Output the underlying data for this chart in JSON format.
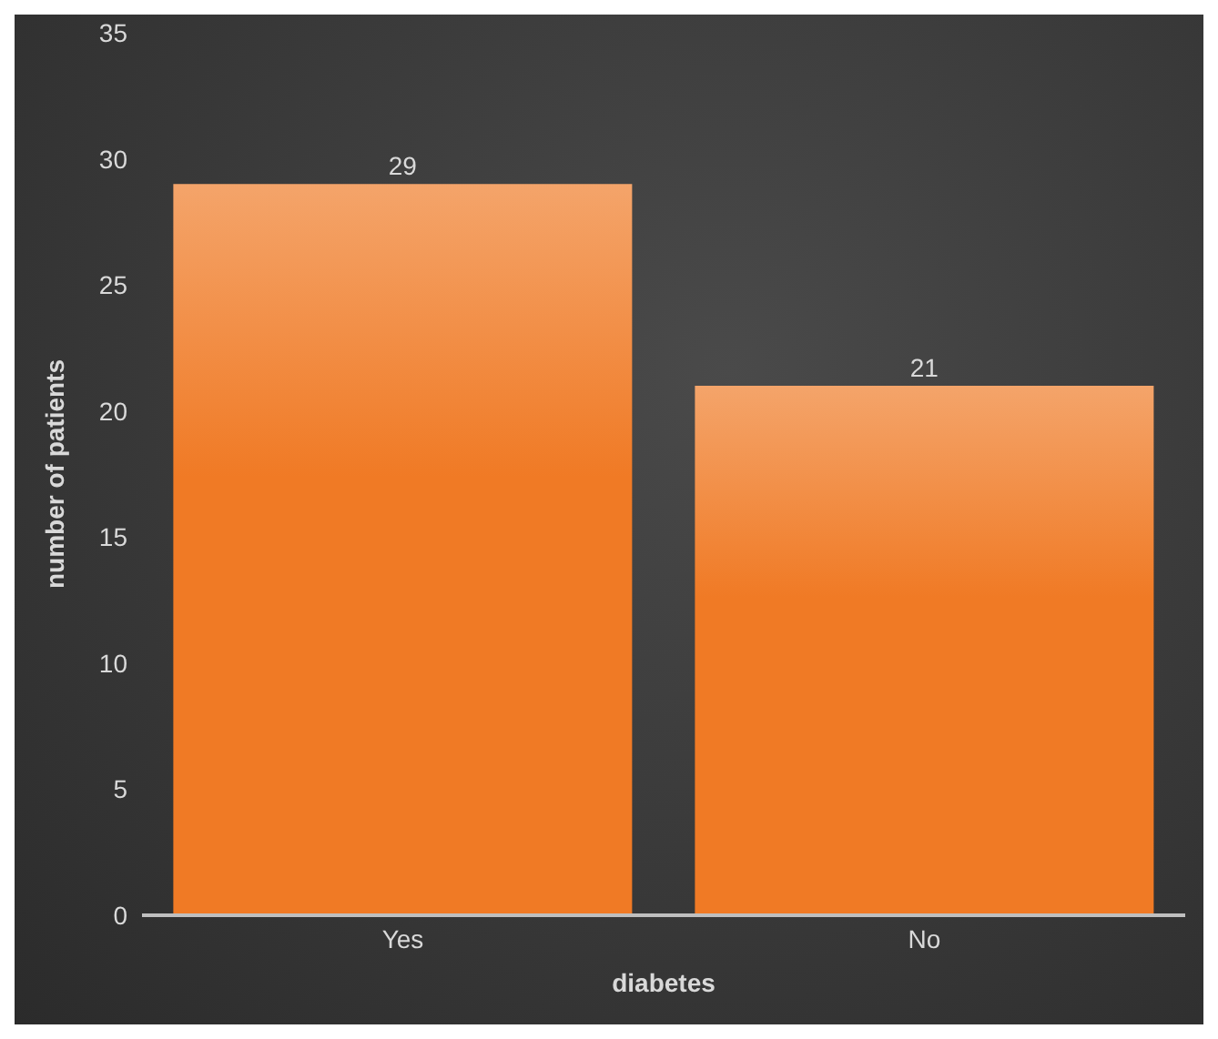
{
  "chart_data": {
    "type": "bar",
    "xlabel": "diabetes",
    "ylabel": "number of patients",
    "categories": [
      "Yes",
      "No"
    ],
    "values": [
      29,
      21
    ],
    "color": "#f07a25",
    "ylim": [
      0,
      35
    ],
    "yticks": [
      0,
      5,
      10,
      15,
      20,
      25,
      30,
      35
    ],
    "grid": false,
    "data_labels": true
  }
}
